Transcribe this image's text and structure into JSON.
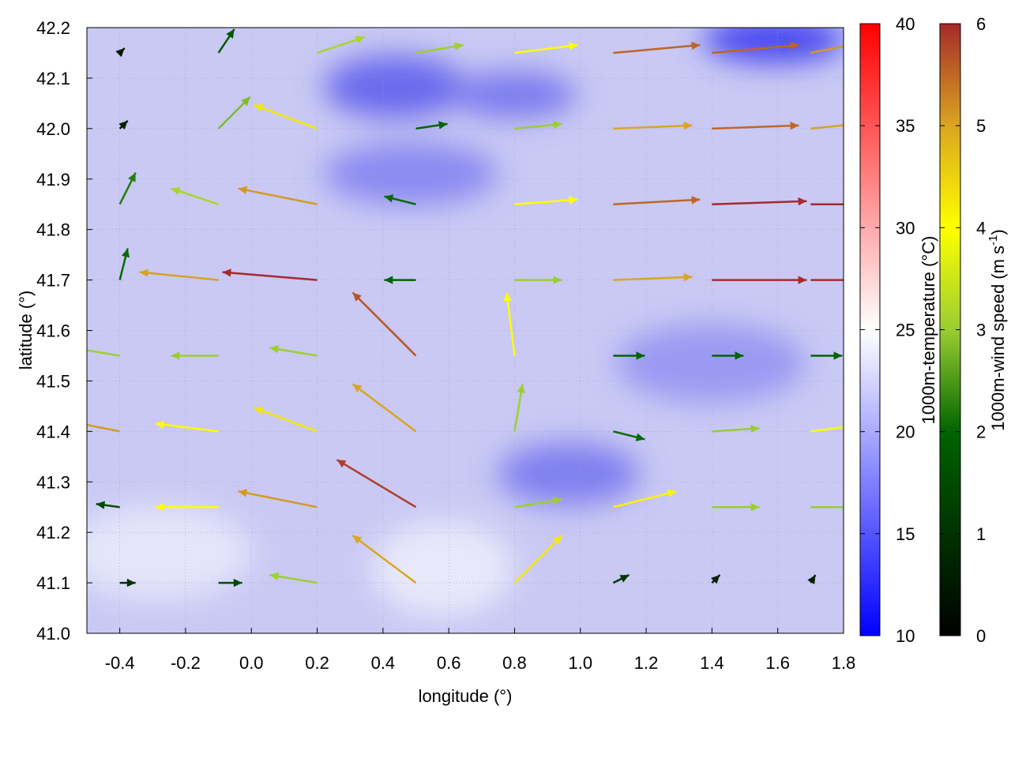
{
  "chart_data": {
    "type": "vector-field",
    "xlabel": "longitude (°)",
    "ylabel": "latitude (°)",
    "xlim": [
      -0.5,
      1.8
    ],
    "ylim": [
      41.0,
      42.2
    ],
    "xticks": [
      "-0.4",
      "-0.2",
      "0.0",
      "0.2",
      "0.4",
      "0.6",
      "0.8",
      "1.0",
      "1.2",
      "1.4",
      "1.6",
      "1.8"
    ],
    "xtick_values": [
      -0.4,
      -0.2,
      0.0,
      0.2,
      0.4,
      0.6,
      0.8,
      1.0,
      1.2,
      1.4,
      1.6,
      1.8
    ],
    "yticks": [
      "41.0",
      "41.1",
      "41.2",
      "41.3",
      "41.4",
      "41.5",
      "41.6",
      "41.7",
      "41.8",
      "41.9",
      "42.0",
      "42.1",
      "42.2"
    ],
    "ytick_values": [
      41.0,
      41.1,
      41.2,
      41.3,
      41.4,
      41.5,
      41.6,
      41.7,
      41.8,
      41.9,
      42.0,
      42.1,
      42.2
    ],
    "grid": true,
    "temperature_colorbar": {
      "label": "1000m-temperature (°C)",
      "range": [
        10,
        40
      ],
      "ticks": [
        "10",
        "15",
        "20",
        "25",
        "30",
        "35",
        "40"
      ],
      "tick_values": [
        10,
        15,
        20,
        25,
        30,
        35,
        40
      ],
      "colors": [
        "#0000ff",
        "#ffffff",
        "#ff0000"
      ]
    },
    "wind_colorbar": {
      "label": "1000m-wind speed (m s",
      "label_sup": "-1",
      "label_end": ")",
      "range": [
        0,
        6
      ],
      "ticks": [
        "0",
        "1",
        "2",
        "3",
        "4",
        "5",
        "6"
      ],
      "tick_values": [
        0,
        1,
        2,
        3,
        4,
        5,
        6
      ],
      "colors": [
        "#000000",
        "#006400",
        "#9acd32",
        "#ffff00",
        "#daa520",
        "#a52a2a"
      ]
    },
    "background_temperature_approx": 20,
    "vectors_lon_lat_u_v": [
      [
        -0.4,
        42.15,
        0.3,
        0.3
      ],
      [
        -0.1,
        42.15,
        1,
        1.5
      ],
      [
        0.2,
        42.15,
        3,
        1
      ],
      [
        0.5,
        42.15,
        3,
        0.5
      ],
      [
        0.8,
        42.15,
        4,
        0.5
      ],
      [
        1.1,
        42.15,
        5.5,
        0.5
      ],
      [
        1.4,
        42.15,
        5.5,
        0.5
      ],
      [
        1.7,
        42.15,
        5,
        1
      ],
      [
        -0.4,
        42.0,
        0.5,
        0.5
      ],
      [
        -0.1,
        42.0,
        2,
        2
      ],
      [
        0.2,
        42.0,
        -4,
        1.5
      ],
      [
        0.5,
        42.0,
        2,
        0.3
      ],
      [
        0.8,
        42.0,
        3,
        0.3
      ],
      [
        1.1,
        42.0,
        5,
        0.2
      ],
      [
        1.4,
        42.0,
        5.5,
        0.2
      ],
      [
        1.7,
        42.0,
        5,
        0.5
      ],
      [
        -0.4,
        41.85,
        1,
        2
      ],
      [
        -0.1,
        41.85,
        -3,
        1
      ],
      [
        0.2,
        41.85,
        -5,
        1
      ],
      [
        0.5,
        41.85,
        -2,
        0.5
      ],
      [
        0.8,
        41.85,
        4,
        0.3
      ],
      [
        1.1,
        41.85,
        5.5,
        0.3
      ],
      [
        1.4,
        41.85,
        6,
        0.2
      ],
      [
        1.7,
        41.85,
        6,
        0
      ],
      [
        -0.4,
        41.7,
        0.5,
        2
      ],
      [
        -0.1,
        41.7,
        -5,
        0.5
      ],
      [
        0.2,
        41.7,
        -6,
        0.5
      ],
      [
        0.5,
        41.7,
        -2,
        0
      ],
      [
        0.8,
        41.7,
        3,
        0
      ],
      [
        1.1,
        41.7,
        5,
        0.2
      ],
      [
        1.4,
        41.7,
        6,
        0
      ],
      [
        1.7,
        41.7,
        6,
        0
      ],
      [
        -0.4,
        41.55,
        -3,
        0.5
      ],
      [
        -0.1,
        41.55,
        -3,
        0
      ],
      [
        0.2,
        41.55,
        -3,
        0.5
      ],
      [
        0.5,
        41.55,
        -4,
        4
      ],
      [
        0.8,
        41.55,
        -0.5,
        4
      ],
      [
        1.1,
        41.55,
        2,
        0
      ],
      [
        1.4,
        41.55,
        2,
        0
      ],
      [
        1.7,
        41.55,
        2,
        0
      ],
      [
        -0.4,
        41.4,
        -5,
        1
      ],
      [
        -0.1,
        41.4,
        -4,
        0.5
      ],
      [
        0.2,
        41.4,
        -4,
        1.5
      ],
      [
        0.5,
        41.4,
        -4,
        3
      ],
      [
        0.8,
        41.4,
        0.5,
        3
      ],
      [
        1.1,
        41.4,
        2,
        -0.5
      ],
      [
        1.4,
        41.4,
        3,
        0.2
      ],
      [
        1.7,
        41.4,
        4,
        0.5
      ],
      [
        -0.4,
        41.25,
        -1.5,
        0.2
      ],
      [
        -0.1,
        41.25,
        -4,
        0
      ],
      [
        0.2,
        41.25,
        -5,
        1
      ],
      [
        0.5,
        41.25,
        -5,
        3
      ],
      [
        0.8,
        41.25,
        3,
        0.5
      ],
      [
        1.1,
        41.25,
        4,
        1
      ],
      [
        1.4,
        41.25,
        3,
        0
      ],
      [
        1.7,
        41.25,
        3,
        0
      ],
      [
        -0.4,
        41.1,
        1,
        0
      ],
      [
        -0.1,
        41.1,
        1.5,
        0
      ],
      [
        0.2,
        41.1,
        -3,
        0.5
      ],
      [
        0.5,
        41.1,
        -4,
        3
      ],
      [
        0.8,
        41.1,
        3,
        3
      ],
      [
        1.1,
        41.1,
        1,
        0.5
      ],
      [
        1.4,
        41.1,
        0.5,
        0.5
      ],
      [
        1.7,
        41.1,
        0.3,
        0.5
      ]
    ]
  }
}
